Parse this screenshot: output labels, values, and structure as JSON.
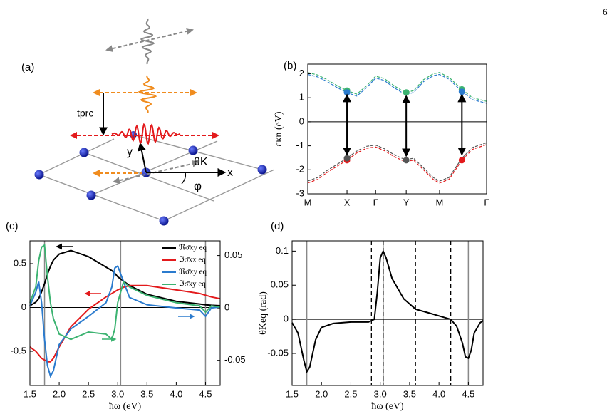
{
  "page_number": "6",
  "diagram": {
    "panel_label": "(a)",
    "labels": [
      "tprc",
      "y",
      "θK",
      "φ",
      "x"
    ]
  },
  "chart_data": [
    {
      "type": "line",
      "panel_label": "(b)",
      "ylabel": "εκn (eV)",
      "x": [
        0,
        0.25,
        0.5,
        0.75,
        1,
        1.25,
        1.5,
        1.73,
        1.95,
        2.2,
        2.4,
        2.51,
        2.7,
        2.95,
        3.2,
        3.36,
        3.6,
        3.93,
        4.2,
        4.56
      ],
      "xlim": [
        0,
        4.56
      ],
      "xticks": [
        {
          "value": 0,
          "label": "M"
        },
        {
          "value": 1,
          "label": "X"
        },
        {
          "value": 1.73,
          "label": "Γ"
        },
        {
          "value": 2.51,
          "label": "Y"
        },
        {
          "value": 3.36,
          "label": "M"
        },
        {
          "value": 4.56,
          "label": "Γ"
        }
      ],
      "ylim": [
        -3,
        2.4
      ],
      "yticks": [
        -3,
        -2,
        -1,
        0,
        1,
        2
      ],
      "zero_line": true,
      "series": [
        {
          "color": "#3cb371",
          "dash": true,
          "values": [
            2.05,
            1.95,
            1.75,
            1.5,
            1.3,
            1.15,
            1.5,
            1.9,
            1.8,
            1.5,
            1.3,
            1.22,
            1.3,
            1.75,
            2.0,
            2.05,
            1.85,
            1.35,
            1.0,
            0.85
          ]
        },
        {
          "color": "#2b7bce",
          "dash": true,
          "values": [
            1.97,
            1.87,
            1.67,
            1.42,
            1.22,
            1.07,
            1.42,
            1.82,
            1.72,
            1.42,
            1.22,
            1.14,
            1.22,
            1.67,
            1.92,
            1.97,
            1.77,
            1.27,
            0.92,
            0.77
          ]
        },
        {
          "color": "#e31a1c",
          "dash": true,
          "values": [
            -2.55,
            -2.4,
            -2.1,
            -1.85,
            -1.6,
            -1.3,
            -1.1,
            -1.05,
            -1.2,
            -1.45,
            -1.6,
            -1.65,
            -1.6,
            -2.0,
            -2.4,
            -2.55,
            -2.4,
            -1.6,
            -1.15,
            -0.95
          ]
        },
        {
          "color": "#555555",
          "dash": true,
          "values": [
            -2.47,
            -2.32,
            -2.02,
            -1.77,
            -1.52,
            -1.22,
            -1.02,
            -0.97,
            -1.12,
            -1.37,
            -1.52,
            -1.57,
            -1.52,
            -1.92,
            -2.32,
            -2.47,
            -2.32,
            -1.52,
            -1.07,
            -0.87
          ]
        }
      ],
      "markers": [
        {
          "x": 1,
          "y": 1.3,
          "color": "#3cb371"
        },
        {
          "x": 1,
          "y": 1.22,
          "color": "#2b7bce"
        },
        {
          "x": 1,
          "y": -1.6,
          "color": "#e31a1c"
        },
        {
          "x": 1,
          "y": -1.52,
          "color": "#555555"
        },
        {
          "x": 2.51,
          "y": 1.22,
          "color": "#3cb371"
        },
        {
          "x": 2.51,
          "y": -1.6,
          "color": "#555555"
        },
        {
          "x": 3.93,
          "y": 1.35,
          "color": "#3cb371"
        },
        {
          "x": 3.93,
          "y": 1.25,
          "color": "#2b7bce"
        },
        {
          "x": 3.93,
          "y": -1.6,
          "color": "#e31a1c"
        }
      ],
      "arrows": [
        {
          "x": 1,
          "y1": 1.1,
          "y2": -1.35
        },
        {
          "x": 2.51,
          "y1": 1.05,
          "y2": -1.4
        },
        {
          "x": 3.93,
          "y1": 1.1,
          "y2": -1.35
        }
      ]
    },
    {
      "type": "line",
      "panel_label": "(c)",
      "xlabel": "ħω (eV)",
      "x": [
        1.5,
        1.6,
        1.65,
        1.7,
        1.75,
        1.8,
        1.85,
        1.9,
        2.0,
        2.2,
        2.5,
        2.8,
        2.9,
        2.95,
        3.0,
        3.1,
        3.2,
        3.5,
        4.0,
        4.4,
        4.5,
        4.6,
        4.75
      ],
      "xlim": [
        1.5,
        4.75
      ],
      "xticks": [
        1.5,
        {
          "value": 2,
          "label": "2.0"
        },
        2.5,
        {
          "value": 3,
          "label": "3.0"
        },
        3.5,
        {
          "value": 4,
          "label": "4.0"
        },
        4.5
      ],
      "ylim": [
        -0.89,
        0.76
      ],
      "yticks": [
        -0.5,
        0,
        0.5
      ],
      "y2lim": [
        -0.074,
        0.064
      ],
      "y2ticks": [
        -0.05,
        0,
        0.05
      ],
      "zero_line": true,
      "vlines": [
        1.75,
        3.05,
        4.5
      ],
      "legend": "upper right",
      "series": [
        {
          "name": "ℜσ̄xy eq",
          "color": "#000000",
          "values": [
            0.02,
            0.06,
            0.1,
            0.18,
            0.27,
            0.38,
            0.47,
            0.54,
            0.61,
            0.65,
            0.58,
            0.46,
            0.42,
            0.39,
            0.35,
            0.3,
            0.25,
            0.15,
            0.07,
            0.04,
            0.03,
            0.025,
            0.02
          ]
        },
        {
          "name": "ℑσ̄xx eq",
          "color": "#e31a1c",
          "values": [
            -0.45,
            -0.5,
            -0.54,
            -0.58,
            -0.6,
            -0.62,
            -0.62,
            -0.58,
            -0.45,
            -0.22,
            -0.02,
            0.12,
            0.16,
            0.18,
            0.2,
            0.23,
            0.25,
            0.25,
            0.2,
            0.16,
            0.14,
            0.12,
            0.1
          ]
        },
        {
          "name": "ℜσ̄xy eq",
          "color": "#2b7bce",
          "axis": "y2",
          "values": [
            0.002,
            0.015,
            0.025,
            0.005,
            -0.03,
            -0.055,
            -0.065,
            -0.06,
            -0.035,
            -0.02,
            -0.008,
            0.005,
            0.02,
            0.038,
            0.04,
            0.025,
            0.01,
            0.003,
            0.0,
            -0.002,
            -0.008,
            0.0,
            0.001
          ]
        },
        {
          "name": "ℑσ̄xy eq",
          "color": "#3cb371",
          "axis": "y2",
          "values": [
            0.005,
            0.02,
            0.045,
            0.058,
            0.06,
            0.03,
            0.005,
            -0.01,
            -0.025,
            -0.03,
            -0.023,
            -0.025,
            -0.03,
            -0.02,
            0.005,
            0.025,
            0.02,
            0.012,
            0.005,
            0.002,
            -0.004,
            0.002,
            0.001
          ]
        }
      ]
    },
    {
      "type": "line",
      "panel_label": "(d)",
      "xlabel": "ħω (eV)",
      "ylabel": "θKeq (rad)",
      "x": [
        1.5,
        1.6,
        1.7,
        1.75,
        1.8,
        1.9,
        2.0,
        2.2,
        2.5,
        2.8,
        2.9,
        2.95,
        3.0,
        3.05,
        3.1,
        3.2,
        3.4,
        3.6,
        3.8,
        4.0,
        4.2,
        4.3,
        4.4,
        4.45,
        4.5,
        4.55,
        4.6,
        4.7,
        4.75
      ],
      "xlim": [
        1.5,
        4.75
      ],
      "xticks": [
        1.5,
        {
          "value": 2,
          "label": "2.0"
        },
        2.5,
        {
          "value": 3,
          "label": "3.0"
        },
        3.5,
        {
          "value": 4,
          "label": "4.0"
        },
        4.5
      ],
      "ylim": [
        -0.097,
        0.115
      ],
      "yticks": [
        -0.05,
        0,
        0.05,
        0.1
      ],
      "zero_line": true,
      "vlines": [
        1.75,
        3.05,
        4.5
      ],
      "dashed_vlines": [
        2.85,
        3.05,
        3.6,
        4.2
      ],
      "series": [
        {
          "color": "#000000",
          "values": [
            -0.005,
            -0.02,
            -0.06,
            -0.077,
            -0.07,
            -0.03,
            -0.012,
            -0.006,
            -0.004,
            -0.004,
            0.0,
            0.04,
            0.09,
            0.1,
            0.09,
            0.06,
            0.03,
            0.015,
            0.01,
            0.005,
            0.0,
            -0.01,
            -0.035,
            -0.055,
            -0.057,
            -0.045,
            -0.02,
            -0.005,
            -0.002
          ]
        }
      ]
    }
  ]
}
